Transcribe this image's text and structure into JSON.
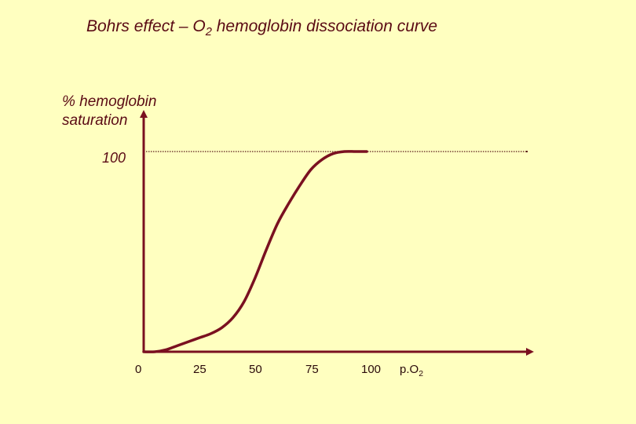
{
  "title_prefix": "Bohrs effect – O",
  "title_sub": "2",
  "title_suffix": " hemoglobin dissociation curve",
  "chart_data": {
    "type": "line",
    "ylabel_line1": "% hemoglobin",
    "ylabel_line2": "saturation",
    "xlabel_prefix": "p.O",
    "xlabel_sub": "2",
    "x_ticks": [
      "0",
      "25",
      "50",
      "75",
      "100"
    ],
    "y_ticks": [
      "100"
    ],
    "xlim": [
      0,
      140
    ],
    "ylim": [
      0,
      100
    ],
    "reference_line_y": 100,
    "series": [
      {
        "x": [
          0,
          5,
          10,
          15,
          20,
          25,
          30,
          35,
          40,
          45,
          50,
          55,
          60,
          65,
          70,
          75,
          80,
          85,
          90,
          95,
          100
        ],
        "y": [
          0,
          0,
          1,
          3,
          5,
          7,
          9,
          12,
          17,
          25,
          37,
          51,
          64,
          74,
          83,
          91,
          96,
          99,
          100,
          100,
          100
        ]
      }
    ],
    "colors": {
      "curve": "#7a1020",
      "axis": "#7a1020",
      "reference": "#5a1a1a",
      "background": "#ffffc0"
    }
  }
}
